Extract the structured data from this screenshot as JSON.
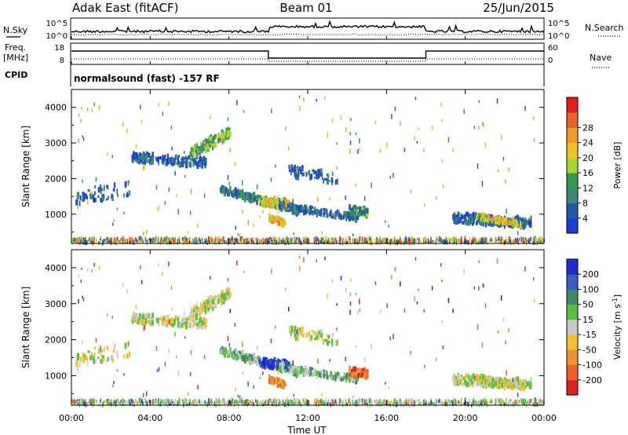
{
  "header": {
    "station": "Adak East (fitACF)",
    "beam": "Beam 01",
    "date": "25/Jun/2015"
  },
  "status_panel": {
    "left_top_label": "N.Sky",
    "left_top_ticks": [
      "10^5",
      "10^0"
    ],
    "right_top_ticks": [
      "10^5",
      "10^0"
    ],
    "right_top_label": "N.Search",
    "freq_label_1": "Freq.",
    "freq_label_2": "[MHz]",
    "freq_ticks": [
      "18",
      "8"
    ],
    "nave_ticks": [
      "60",
      "0"
    ],
    "nave_label": "Nave",
    "cpid_label": "CPID",
    "cpid_text": "normalsound (fast) -157 RF"
  },
  "chart_data": [
    {
      "type": "heatmap",
      "name": "power",
      "ylabel": "Slant Range [km]",
      "yticks": [
        "1000",
        "2000",
        "3000",
        "4000"
      ],
      "ylim": [
        180,
        4500
      ],
      "xlim": [
        0,
        24
      ],
      "colorbar_label": "Power [dB]",
      "colorbar_ticks": [
        "4",
        "8",
        "12",
        "16",
        "20",
        "24",
        "28"
      ],
      "colorbar": [
        "#1a3fd8",
        "#2458a8",
        "#3b8a78",
        "#2f9a50",
        "#a8d82c",
        "#f0c020",
        "#f49a28",
        "#e86428",
        "#e02020"
      ]
    },
    {
      "type": "heatmap",
      "name": "velocity",
      "ylabel": "Slant Range [km]",
      "yticks": [
        "1000",
        "2000",
        "3000",
        "4000"
      ],
      "ylim": [
        180,
        4500
      ],
      "xlim": [
        0,
        24
      ],
      "xticks": [
        "00:00",
        "04:00",
        "08:00",
        "12:00",
        "16:00",
        "20:00",
        "00:00"
      ],
      "xlabel": "Time UT",
      "colorbar_label": "Velocity [m s",
      "colorbar_label_exp": "-1",
      "colorbar_label_end": "]",
      "colorbar_ticks": [
        "200",
        "100",
        "50",
        "15",
        "-15",
        "-50",
        "-100",
        "-200"
      ],
      "colorbar": [
        "#1c2cd0",
        "#3a5ac8",
        "#3a8a6a",
        "#58c03a",
        "#c8c8c8",
        "#f0c030",
        "#f09030",
        "#f06028",
        "#e02020"
      ]
    }
  ]
}
